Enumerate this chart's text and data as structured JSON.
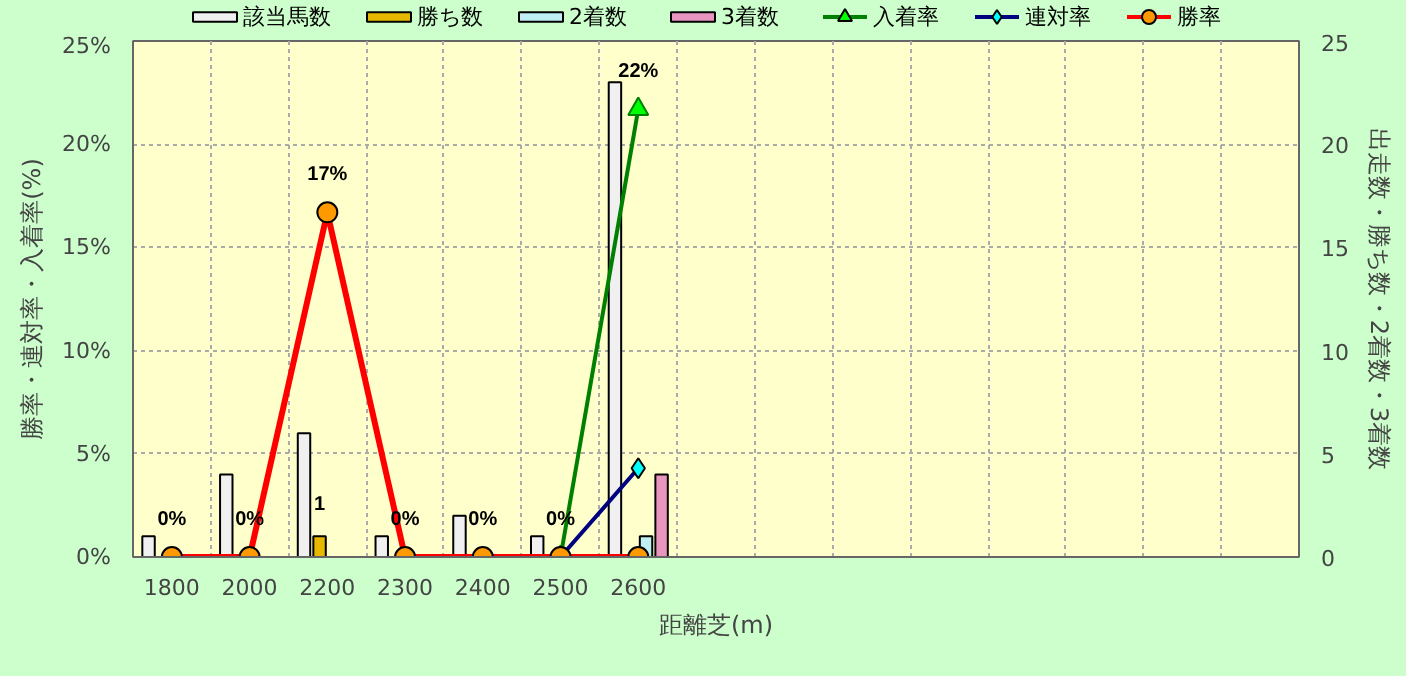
{
  "chart_data": {
    "type": "bar",
    "xlabel": "距離芝(m)",
    "ylabel": "勝率・連対率・入着率(%)",
    "y2label": "出走数・勝ち数・2着数・3着数",
    "categories": [
      "1800",
      "2000",
      "2200",
      "2300",
      "2400",
      "2500",
      "2600",
      null,
      null,
      null,
      null,
      null,
      null,
      null,
      null
    ],
    "ylim": [
      0,
      25
    ],
    "yticks": [
      {
        "value": 0,
        "label": "0%"
      },
      {
        "value": 5,
        "label": "5%"
      },
      {
        "value": 10,
        "label": "10%"
      },
      {
        "value": 15,
        "label": "15%"
      },
      {
        "value": 20,
        "label": "20%"
      },
      {
        "value": 25,
        "label": "25%"
      }
    ],
    "y2lim": [
      0,
      25
    ],
    "y2ticks": [
      0,
      5,
      10,
      15,
      20,
      25
    ],
    "grid": true,
    "legend": "top",
    "series": [
      {
        "name": "該当馬数",
        "axis": "y2",
        "color": "#f0f0f0",
        "values": [
          1,
          4,
          6,
          1,
          2,
          1,
          23,
          null,
          null,
          null,
          null,
          null,
          null,
          null,
          null
        ]
      },
      {
        "name": "勝ち数",
        "axis": "y2",
        "color": "#e6b800",
        "values": [
          0,
          0,
          1,
          0,
          0,
          0,
          0,
          null,
          null,
          null,
          null,
          null,
          null,
          null,
          null
        ],
        "value_labels": [
          null,
          null,
          "1",
          null,
          null,
          null,
          null,
          null,
          null,
          null,
          null,
          null,
          null,
          null,
          null
        ]
      },
      {
        "name": "2着数",
        "axis": "y2",
        "color": "#bfeef5",
        "values": [
          0,
          0,
          0,
          0,
          0,
          0,
          1,
          null,
          null,
          null,
          null,
          null,
          null,
          null,
          null
        ]
      },
      {
        "name": "3着数",
        "axis": "y2",
        "color": "#e896c0",
        "values": [
          0,
          0,
          0,
          0,
          0,
          0,
          4,
          null,
          null,
          null,
          null,
          null,
          null,
          null,
          null
        ]
      },
      {
        "name": "入着率",
        "type": "line",
        "marker": "triangle",
        "color": "#008000",
        "values": [
          null,
          null,
          null,
          null,
          null,
          0,
          21.7,
          null,
          null,
          null,
          null,
          null,
          null,
          null,
          null
        ],
        "value_labels": [
          null,
          null,
          null,
          null,
          null,
          null,
          "22%",
          null,
          null,
          null,
          null,
          null,
          null,
          null,
          null
        ]
      },
      {
        "name": "連対率",
        "type": "line",
        "marker": "diamond",
        "color": "#000080",
        "values": [
          null,
          null,
          null,
          null,
          null,
          0,
          4.3,
          null,
          null,
          null,
          null,
          null,
          null,
          null,
          null
        ]
      },
      {
        "name": "勝率",
        "type": "line",
        "marker": "circle",
        "color": "#ff0000",
        "values": [
          0,
          0,
          16.7,
          0,
          0,
          0,
          0,
          null,
          null,
          null,
          null,
          null,
          null,
          null,
          null
        ],
        "value_labels": [
          "0%",
          "0%",
          "17%",
          "0%",
          "0%",
          "0%",
          null,
          null,
          null,
          null,
          null,
          null,
          null,
          null,
          null
        ]
      }
    ]
  }
}
